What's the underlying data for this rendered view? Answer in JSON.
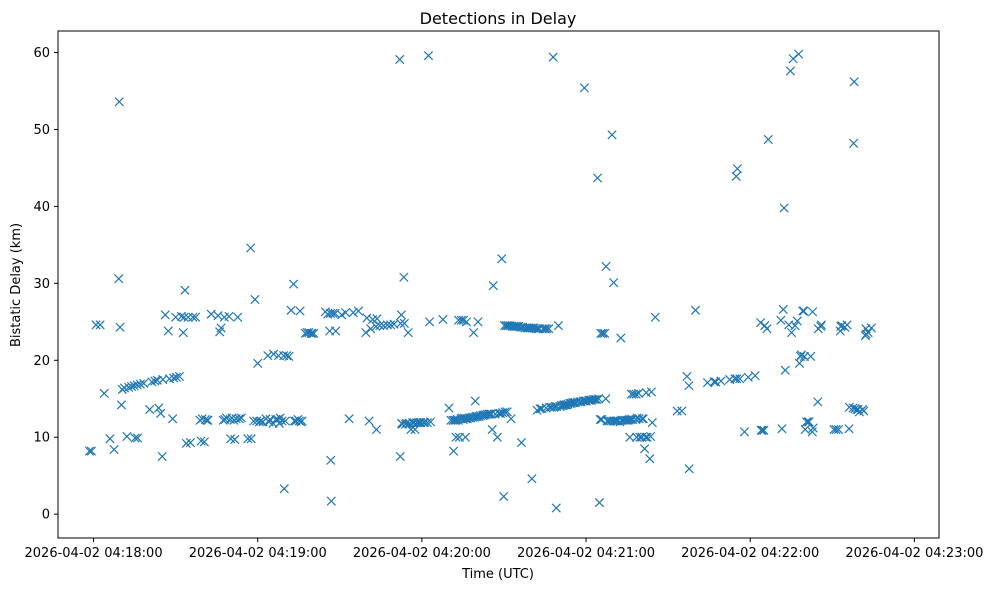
{
  "chart_data": {
    "type": "scatter",
    "title": "Detections in Delay",
    "xlabel": "Time (UTC)",
    "ylabel": "Bistatic Delay (km)",
    "marker": "x",
    "color": "#1f77b4",
    "x_unit": "seconds since 2026-04-02 04:18:00",
    "xlim": [
      -13,
      309
    ],
    "ylim": [
      -3.1,
      62.8
    ],
    "xticks": [
      {
        "value": 0,
        "label": "2026-04-02 04:18:00"
      },
      {
        "value": 60,
        "label": "2026-04-02 04:19:00"
      },
      {
        "value": 120,
        "label": "2026-04-02 04:20:00"
      },
      {
        "value": 180,
        "label": "2026-04-02 04:21:00"
      },
      {
        "value": 240,
        "label": "2026-04-02 04:22:00"
      },
      {
        "value": 300,
        "label": "2026-04-02 04:23:00"
      }
    ],
    "yticks": [
      {
        "value": 0,
        "label": "0"
      },
      {
        "value": 10,
        "label": "10"
      },
      {
        "value": 20,
        "label": "20"
      },
      {
        "value": 30,
        "label": "30"
      },
      {
        "value": 40,
        "label": "40"
      },
      {
        "value": 50,
        "label": "50"
      },
      {
        "value": 60,
        "label": "60"
      }
    ],
    "points": [
      [
        -1.5,
        8.2
      ],
      [
        -0.8,
        8.2
      ],
      [
        0.9,
        24.6
      ],
      [
        2.4,
        24.6
      ],
      [
        3.9,
        15.7
      ],
      [
        6,
        9.8
      ],
      [
        7.5,
        8.4
      ],
      [
        9.2,
        30.6
      ],
      [
        9.4,
        53.6
      ],
      [
        9.7,
        24.3
      ],
      [
        10.2,
        14.2
      ],
      [
        10.5,
        16.2
      ],
      [
        11.3,
        16.4
      ],
      [
        12.2,
        10.1
      ],
      [
        12.8,
        16.5
      ],
      [
        13.9,
        16.6
      ],
      [
        14.8,
        16.7
      ],
      [
        15.2,
        9.9
      ],
      [
        15.9,
        16.8
      ],
      [
        16.1,
        9.9
      ],
      [
        17.1,
        16.9
      ],
      [
        18.3,
        17
      ],
      [
        20.5,
        13.6
      ],
      [
        21.3,
        17.2
      ],
      [
        22.4,
        17.3
      ],
      [
        23.3,
        17.4
      ],
      [
        23.8,
        13.8
      ],
      [
        24.5,
        13.1
      ],
      [
        25.1,
        7.5
      ],
      [
        25.3,
        17.5
      ],
      [
        26.2,
        25.9
      ],
      [
        27.3,
        23.8
      ],
      [
        27.7,
        17.6
      ],
      [
        28.9,
        12.4
      ],
      [
        29.3,
        17.7
      ],
      [
        30,
        25.6
      ],
      [
        30.3,
        17.8
      ],
      [
        31.4,
        17.9
      ],
      [
        32.1,
        25.7
      ],
      [
        32.8,
        23.6
      ],
      [
        33.1,
        25.6
      ],
      [
        33.4,
        29.1
      ],
      [
        33.9,
        9.2
      ],
      [
        34.6,
        25.6
      ],
      [
        35.4,
        9.3
      ],
      [
        36.3,
        25.6
      ],
      [
        37.3,
        25.6
      ],
      [
        38.9,
        12.2
      ],
      [
        39.3,
        9.5
      ],
      [
        39.7,
        12.4
      ],
      [
        40.5,
        9.4
      ],
      [
        40.9,
        12.3
      ],
      [
        41.5,
        12.2
      ],
      [
        41.8,
        12.2
      ],
      [
        43,
        26
      ],
      [
        45.5,
        25.8
      ],
      [
        46.1,
        23.7
      ],
      [
        46.6,
        24.2
      ],
      [
        47.4,
        12.2
      ],
      [
        47.8,
        25.6
      ],
      [
        48,
        12.3
      ],
      [
        48.6,
        12.5
      ],
      [
        49.5,
        25.7
      ],
      [
        50,
        12.3
      ],
      [
        50.1,
        9.8
      ],
      [
        50.6,
        12.5
      ],
      [
        51.3,
        12.2
      ],
      [
        51.6,
        9.7
      ],
      [
        52.1,
        12.4
      ],
      [
        52.7,
        25.6
      ],
      [
        53.2,
        12.4
      ],
      [
        54,
        12.5
      ],
      [
        56.4,
        9.8
      ],
      [
        57.4,
        34.6
      ],
      [
        57.6,
        9.8
      ],
      [
        58.5,
        12.1
      ],
      [
        59,
        27.9
      ],
      [
        59.6,
        12.1
      ],
      [
        60,
        19.6
      ],
      [
        60.6,
        12
      ],
      [
        61.1,
        12.1
      ],
      [
        61.9,
        12
      ],
      [
        63,
        12.4
      ],
      [
        63.7,
        20.6
      ],
      [
        64.1,
        12
      ],
      [
        64.5,
        12.3
      ],
      [
        65.6,
        11.8
      ],
      [
        65.8,
        20.8
      ],
      [
        66.6,
        12.3
      ],
      [
        67.3,
        12.3
      ],
      [
        67.6,
        20.6
      ],
      [
        67.9,
        11.8
      ],
      [
        68.2,
        12.5
      ],
      [
        68.9,
        12.1
      ],
      [
        69.5,
        20.6
      ],
      [
        69.7,
        3.3
      ],
      [
        70.1,
        12.1
      ],
      [
        70.6,
        20.6
      ],
      [
        71.4,
        20.5
      ],
      [
        72.2,
        26.5
      ],
      [
        73.1,
        29.9
      ],
      [
        73.4,
        12.1
      ],
      [
        74,
        12.1
      ],
      [
        74.7,
        12.3
      ],
      [
        75.2,
        12.1
      ],
      [
        75.5,
        26.4
      ],
      [
        75.8,
        12
      ],
      [
        76.2,
        12.1
      ],
      [
        77.4,
        23.5
      ],
      [
        78,
        23.6
      ],
      [
        78.7,
        23.6
      ],
      [
        79.5,
        23.5
      ],
      [
        79.8,
        23.5
      ],
      [
        80.5,
        23.5
      ],
      [
        84.7,
        26.3
      ],
      [
        85.6,
        26
      ],
      [
        86.3,
        23.8
      ],
      [
        86.6,
        26.1
      ],
      [
        86.7,
        7
      ],
      [
        86.9,
        1.7
      ],
      [
        87.5,
        26.1
      ],
      [
        88.3,
        26.1
      ],
      [
        88.5,
        23.8
      ],
      [
        90.7,
        25.9
      ],
      [
        92.1,
        26.2
      ],
      [
        93.4,
        12.4
      ],
      [
        94.9,
        26.2
      ],
      [
        96.8,
        26.4
      ],
      [
        99.5,
        23.6
      ],
      [
        99.9,
        25.5
      ],
      [
        100.7,
        12.1
      ],
      [
        101.3,
        24.1
      ],
      [
        102,
        25.3
      ],
      [
        103.2,
        24.4
      ],
      [
        103.4,
        11
      ],
      [
        103.6,
        25.4
      ],
      [
        104.6,
        24.5
      ],
      [
        106,
        24.5
      ],
      [
        107.4,
        24.6
      ],
      [
        108.6,
        24.6
      ],
      [
        109.8,
        24.7
      ],
      [
        111.9,
        59.1
      ],
      [
        112.1,
        7.5
      ],
      [
        112.2,
        24.8
      ],
      [
        112.5,
        25.9
      ],
      [
        112.6,
        11.8
      ],
      [
        112.9,
        11.7
      ],
      [
        113.4,
        30.8
      ],
      [
        113.6,
        24.8
      ],
      [
        114,
        11.7
      ],
      [
        114.4,
        11.8
      ],
      [
        115,
        23.6
      ],
      [
        115.2,
        11.7
      ],
      [
        115.5,
        11.8
      ],
      [
        116,
        11
      ],
      [
        116.6,
        11.9
      ],
      [
        117.1,
        11.9
      ],
      [
        117.5,
        11
      ],
      [
        118.1,
        11.9
      ],
      [
        118.7,
        11.9
      ],
      [
        119.3,
        11.9
      ],
      [
        119.6,
        11.9
      ],
      [
        120.6,
        11.9
      ],
      [
        121,
        11.9
      ],
      [
        122,
        11.9
      ],
      [
        122.4,
        59.6
      ],
      [
        122.8,
        25
      ],
      [
        123.2,
        12
      ],
      [
        127.7,
        25.3
      ],
      [
        129.9,
        13.8
      ],
      [
        130.6,
        12.2
      ],
      [
        131.4,
        12.2
      ],
      [
        131.6,
        8.2
      ],
      [
        132,
        12.2
      ],
      [
        132.4,
        12.2
      ],
      [
        132.5,
        10
      ],
      [
        132.9,
        12.3
      ],
      [
        133.3,
        12.2
      ],
      [
        133.4,
        25.2
      ],
      [
        133.7,
        10
      ],
      [
        134.3,
        12.4
      ],
      [
        134.4,
        25.2
      ],
      [
        134.8,
        12.5
      ],
      [
        135.1,
        12.3
      ],
      [
        135.2,
        25.2
      ],
      [
        135.6,
        12.5
      ],
      [
        135.9,
        10
      ],
      [
        136.1,
        12.4
      ],
      [
        136.3,
        25
      ],
      [
        136.6,
        12.4
      ],
      [
        137.3,
        12.5
      ],
      [
        137.9,
        12.5
      ],
      [
        138.6,
        12.6
      ],
      [
        138.9,
        23.6
      ],
      [
        139.3,
        12.6
      ],
      [
        139.5,
        14.7
      ],
      [
        139.8,
        12.7
      ],
      [
        140.2,
        12.7
      ],
      [
        140.5,
        25
      ],
      [
        140.9,
        12.7
      ],
      [
        141.4,
        12.8
      ],
      [
        142.2,
        12.8
      ],
      [
        142.6,
        12.9
      ],
      [
        143.2,
        12.9
      ],
      [
        143.8,
        13
      ],
      [
        144.5,
        13
      ],
      [
        145,
        13
      ],
      [
        145.4,
        13
      ],
      [
        145.7,
        11
      ],
      [
        146.1,
        29.7
      ],
      [
        146.8,
        13
      ],
      [
        147.6,
        10
      ],
      [
        148.1,
        13.1
      ],
      [
        148.7,
        13.1
      ],
      [
        149.2,
        33.2
      ],
      [
        149.5,
        13.2
      ],
      [
        149.9,
        2.3
      ],
      [
        150.2,
        24.5
      ],
      [
        150.4,
        13.3
      ],
      [
        150.9,
        24.5
      ],
      [
        151.2,
        13.3
      ],
      [
        151.5,
        24.5
      ],
      [
        152.2,
        24.5
      ],
      [
        152.6,
        12.4
      ],
      [
        153,
        24.4
      ],
      [
        153.6,
        24.4
      ],
      [
        154.3,
        24.4
      ],
      [
        154.8,
        24.4
      ],
      [
        155.4,
        24.4
      ],
      [
        156.1,
        24.3
      ],
      [
        156.4,
        9.3
      ],
      [
        156.8,
        24.3
      ],
      [
        157.6,
        24.2
      ],
      [
        158.4,
        24.2
      ],
      [
        159,
        24.2
      ],
      [
        159.6,
        24.2
      ],
      [
        160.2,
        4.6
      ],
      [
        160.4,
        24.2
      ],
      [
        161,
        24.2
      ],
      [
        161.7,
        24.1
      ],
      [
        162.1,
        13.5
      ],
      [
        162.4,
        24.1
      ],
      [
        162.9,
        24.1
      ],
      [
        163.2,
        13.7
      ],
      [
        163.8,
        13.7
      ],
      [
        164.3,
        24.1
      ],
      [
        165,
        24.1
      ],
      [
        165.4,
        13.8
      ],
      [
        165.6,
        24.1
      ],
      [
        166.4,
        24.1
      ],
      [
        166.7,
        13.9
      ],
      [
        167.3,
        13.9
      ],
      [
        168,
        59.4
      ],
      [
        168.2,
        13.9
      ],
      [
        168.7,
        14
      ],
      [
        169.1,
        0.8
      ],
      [
        169.3,
        14
      ],
      [
        169.9,
        24.5
      ],
      [
        170.5,
        14
      ],
      [
        171,
        14.1
      ],
      [
        171.6,
        14.1
      ],
      [
        172,
        14.2
      ],
      [
        172.5,
        14.2
      ],
      [
        172.9,
        14.2
      ],
      [
        173.4,
        14.3
      ],
      [
        174.1,
        14.4
      ],
      [
        174.6,
        14.4
      ],
      [
        175.1,
        14.5
      ],
      [
        175.6,
        14.5
      ],
      [
        176.1,
        14.5
      ],
      [
        176.9,
        14.6
      ],
      [
        177.8,
        14.6
      ],
      [
        178.2,
        14.6
      ],
      [
        179,
        14.7
      ],
      [
        179.4,
        55.4
      ],
      [
        179.6,
        14.7
      ],
      [
        180.1,
        14.7
      ],
      [
        181,
        14.8
      ],
      [
        181.5,
        14.8
      ],
      [
        182,
        14.8
      ],
      [
        182.6,
        14.9
      ],
      [
        183.3,
        14.9
      ],
      [
        183.9,
        14.9
      ],
      [
        184.2,
        43.7
      ],
      [
        184.6,
        15
      ],
      [
        184.9,
        1.5
      ],
      [
        185.2,
        12.3
      ],
      [
        185.4,
        23.5
      ],
      [
        185.7,
        12.3
      ],
      [
        186.1,
        23.5
      ],
      [
        186.8,
        23.5
      ],
      [
        187.2,
        15
      ],
      [
        187.3,
        32.2
      ],
      [
        187.7,
        12.1
      ],
      [
        188.3,
        12.1
      ],
      [
        189,
        12.1
      ],
      [
        189.5,
        49.3
      ],
      [
        189.8,
        12.1
      ],
      [
        190.1,
        30.1
      ],
      [
        190.4,
        12.1
      ],
      [
        191,
        12.1
      ],
      [
        191.5,
        12.1
      ],
      [
        192.4,
        12
      ],
      [
        192.7,
        22.9
      ],
      [
        193.1,
        12.2
      ],
      [
        193.6,
        12.2
      ],
      [
        194.3,
        12.2
      ],
      [
        194.9,
        12.2
      ],
      [
        195.4,
        12.2
      ],
      [
        195.8,
        12.3
      ],
      [
        196,
        10
      ],
      [
        196.5,
        12.3
      ],
      [
        196.6,
        15.6
      ],
      [
        197,
        12.3
      ],
      [
        197.4,
        15.6
      ],
      [
        198.2,
        12.3
      ],
      [
        198.3,
        15.6
      ],
      [
        198.5,
        10
      ],
      [
        198.7,
        12.5
      ],
      [
        199.2,
        15.7
      ],
      [
        199.4,
        12.4
      ],
      [
        199.7,
        10
      ],
      [
        200.4,
        10
      ],
      [
        200.5,
        12.4
      ],
      [
        200.9,
        12.4
      ],
      [
        201.4,
        8.5
      ],
      [
        201.8,
        10
      ],
      [
        202,
        15.8
      ],
      [
        202.3,
        10
      ],
      [
        203.3,
        7.2
      ],
      [
        203.6,
        10.1
      ],
      [
        203.9,
        15.9
      ],
      [
        204.2,
        11.9
      ],
      [
        205.3,
        25.6
      ],
      [
        213.3,
        13.4
      ],
      [
        215,
        13.4
      ],
      [
        216.9,
        17.9
      ],
      [
        217.6,
        16.7
      ],
      [
        217.7,
        5.9
      ],
      [
        220,
        26.5
      ],
      [
        224.4,
        17.1
      ],
      [
        226.8,
        17.2
      ],
      [
        227.4,
        17.2
      ],
      [
        229.3,
        17.3
      ],
      [
        232.5,
        17.5
      ],
      [
        234.4,
        17.6
      ],
      [
        234.9,
        43.9
      ],
      [
        235.1,
        17.6
      ],
      [
        235.3,
        44.9
      ],
      [
        236.2,
        17.6
      ],
      [
        237.9,
        10.7
      ],
      [
        239.3,
        17.8
      ],
      [
        241.8,
        18
      ],
      [
        243.8,
        24.9
      ],
      [
        244,
        10.9
      ],
      [
        244.4,
        10.9
      ],
      [
        245,
        10.9
      ],
      [
        245.3,
        24.5
      ],
      [
        246.1,
        24.1
      ],
      [
        246.6,
        48.7
      ],
      [
        251.2,
        25.2
      ],
      [
        251.6,
        11.1
      ],
      [
        252.1,
        26.6
      ],
      [
        252.4,
        39.8
      ],
      [
        252.8,
        18.7
      ],
      [
        254.1,
        24.6
      ],
      [
        254.7,
        57.6
      ],
      [
        255.1,
        23.6
      ],
      [
        255.7,
        59.2
      ],
      [
        256.4,
        24.5
      ],
      [
        257.2,
        25.1
      ],
      [
        257.7,
        59.8
      ],
      [
        258,
        19.6
      ],
      [
        258.4,
        20.5
      ],
      [
        258.7,
        20.7
      ],
      [
        259.2,
        26.4
      ],
      [
        259.6,
        26.4
      ],
      [
        259.8,
        20.5
      ],
      [
        260.1,
        11
      ],
      [
        260.6,
        12
      ],
      [
        261.2,
        12
      ],
      [
        261.5,
        12
      ],
      [
        262.1,
        20.5
      ],
      [
        262.7,
        10.7
      ],
      [
        262.8,
        26.3
      ],
      [
        263,
        11.2
      ],
      [
        264.7,
        14.6
      ],
      [
        264.9,
        24.1
      ],
      [
        265.8,
        24.4
      ],
      [
        266,
        24.6
      ],
      [
        270.6,
        11
      ],
      [
        271.4,
        11
      ],
      [
        272.3,
        11
      ],
      [
        272.9,
        23.8
      ],
      [
        273.1,
        24.4
      ],
      [
        273.5,
        24.5
      ],
      [
        274.6,
        24.3
      ],
      [
        275.4,
        24.6
      ],
      [
        276.1,
        11.1
      ],
      [
        276.2,
        13.9
      ],
      [
        277.6,
        13.8
      ],
      [
        277.8,
        48.2
      ],
      [
        278,
        56.2
      ],
      [
        278.3,
        13.7
      ],
      [
        279,
        13.6
      ],
      [
        279.4,
        13.6
      ],
      [
        279.9,
        13.3
      ],
      [
        281.1,
        13.6
      ],
      [
        281.5,
        13.4
      ],
      [
        282.1,
        23.2
      ],
      [
        282.3,
        24.1
      ],
      [
        282.4,
        23.4
      ],
      [
        283.1,
        23.6
      ],
      [
        284.3,
        24.2
      ]
    ]
  }
}
